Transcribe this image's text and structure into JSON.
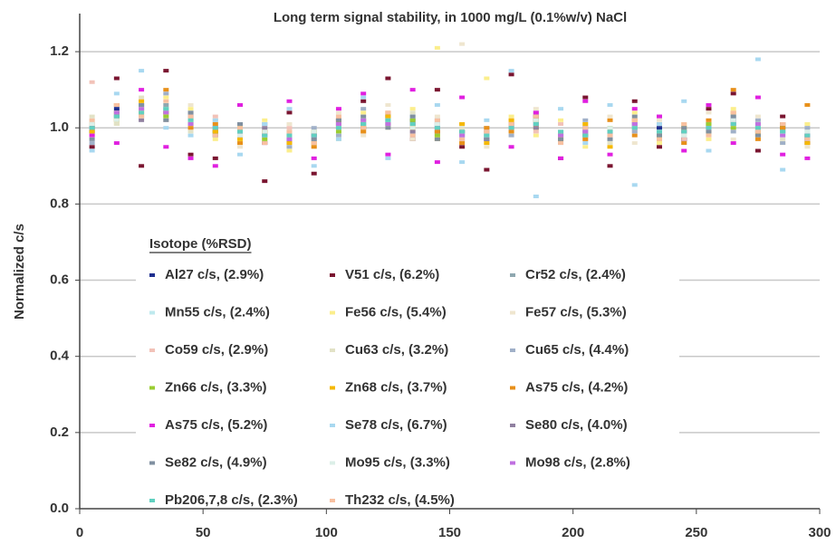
{
  "chart_data": {
    "type": "scatter",
    "title": "Long term signal stability, in 1000 mg/L (0.1%w/v) NaCl",
    "y_label": "Normalized c/s",
    "legend_title": "Isotope (%RSD)",
    "xlim": [
      0,
      300
    ],
    "xticks": [
      0,
      50,
      100,
      150,
      200,
      250,
      300
    ],
    "ylim": [
      0,
      1.3
    ],
    "yticks": [
      {
        "value": 0,
        "label": "0.0"
      },
      {
        "value": 0.2,
        "label": "0.2"
      },
      {
        "value": 0.4,
        "label": "0.4"
      },
      {
        "value": 0.6,
        "label": "0.6"
      },
      {
        "value": 0.8,
        "label": "0.8"
      },
      {
        "value": 1.0,
        "label": "1.0"
      },
      {
        "value": 1.2,
        "label": "1.2"
      }
    ],
    "grid": true,
    "x": [
      5,
      15,
      25,
      35,
      45,
      55,
      65,
      75,
      85,
      95,
      105,
      115,
      125,
      135,
      145,
      155,
      165,
      175,
      185,
      195,
      205,
      215,
      225,
      235,
      245,
      255,
      265,
      275,
      285,
      295
    ],
    "series": [
      {
        "name": "Al27 c/s, (2.9%)",
        "color": "#1f2f8f",
        "values": [
          0.99,
          1.05,
          1.06,
          1.04,
          1.03,
          0.99,
          0.98,
          0.99,
          0.96,
          0.98,
          1.01,
          1.0,
          1.03,
          1.02,
          0.99,
          0.98,
          0.97,
          1.01,
          1.02,
          0.98,
          0.99,
          0.98,
          1.01,
          1.0,
          0.97,
          1.01,
          1.02,
          0.99,
          1.0,
          0.97
        ]
      },
      {
        "name": "V51 c/s, (6.2%)",
        "color": "#7a1530",
        "values": [
          0.95,
          1.13,
          0.9,
          1.15,
          0.93,
          0.92,
          1.06,
          0.86,
          1.04,
          0.88,
          1.02,
          1.07,
          1.13,
          0.97,
          1.1,
          0.95,
          0.89,
          1.14,
          1.03,
          0.92,
          1.08,
          0.9,
          1.07,
          0.95,
          0.97,
          1.05,
          1.09,
          0.94,
          1.03,
          0.96
        ]
      },
      {
        "name": "Cr52 c/s, (2.4%)",
        "color": "#8fa8b0",
        "values": [
          1.01,
          1.04,
          1.05,
          1.06,
          1.02,
          1.0,
          0.99,
          0.98,
          0.98,
          0.97,
          1.0,
          1.02,
          1.01,
          1.01,
          1.0,
          0.99,
          0.98,
          1.0,
          1.01,
          0.99,
          0.99,
          0.99,
          1.0,
          0.98,
          0.99,
          1.0,
          1.02,
          1.0,
          0.99,
          0.98
        ]
      },
      {
        "name": "Mn55 c/s, (2.4%)",
        "color": "#bfeaee",
        "values": [
          1.02,
          1.03,
          1.06,
          1.04,
          1.01,
          1.01,
          0.98,
          0.99,
          0.97,
          0.98,
          1.01,
          1.01,
          1.02,
          1.0,
          1.01,
          0.98,
          0.98,
          1.01,
          1.0,
          0.98,
          0.98,
          1.0,
          1.01,
          0.99,
          0.98,
          1.01,
          1.01,
          1.0,
          0.98,
          0.99
        ]
      },
      {
        "name": "Fe56 c/s, (5.4%)",
        "color": "#fbee8c",
        "values": [
          1.0,
          1.01,
          1.03,
          1.08,
          1.05,
          0.97,
          0.96,
          1.02,
          0.94,
          0.99,
          0.97,
          1.04,
          1.0,
          1.05,
          1.21,
          0.96,
          1.13,
          1.03,
          0.98,
          1.02,
          0.95,
          1.0,
          1.04,
          0.96,
          1.01,
          0.97,
          1.05,
          0.98,
          0.96,
          1.01
        ]
      },
      {
        "name": "Fe57 c/s, (5.3%)",
        "color": "#efe6cf",
        "values": [
          0.98,
          1.06,
          1.04,
          1.03,
          1.06,
          1.02,
          0.95,
          0.97,
          1.01,
          0.96,
          1.04,
          0.98,
          1.06,
          0.97,
          1.03,
          1.22,
          0.95,
          1.02,
          1.05,
          0.97,
          1.0,
          1.03,
          0.96,
          1.02,
          0.98,
          1.04,
          0.97,
          1.03,
          1.01,
          0.95
        ]
      },
      {
        "name": "Co59 c/s, (2.9%)",
        "color": "#f2c2b8",
        "values": [
          1.12,
          1.04,
          1.07,
          1.02,
          1.0,
          1.03,
          0.98,
          0.96,
          1.0,
          0.99,
          1.02,
          0.99,
          1.04,
          0.99,
          0.98,
          1.01,
          0.97,
          1.02,
          0.99,
          1.01,
          0.97,
          1.0,
          0.99,
          1.01,
          0.97,
          1.02,
          1.0,
          0.98,
          1.01,
          0.97
        ]
      },
      {
        "name": "Cu63 c/s, (3.2%)",
        "color": "#e2e2c6",
        "values": [
          1.03,
          1.01,
          1.08,
          1.05,
          0.99,
          1.02,
          1.01,
          0.96,
          0.99,
          0.95,
          1.03,
          1.0,
          1.0,
          1.04,
          0.98,
          1.0,
          0.96,
          0.99,
          1.03,
          0.97,
          1.01,
          0.96,
          1.02,
          0.98,
          1.0,
          0.98,
          1.03,
          1.01,
          0.97,
          1.0
        ]
      },
      {
        "name": "Cu65 c/s, (4.4%)",
        "color": "#a0b0c8",
        "values": [
          0.96,
          1.02,
          1.03,
          1.09,
          1.04,
          0.98,
          1.0,
          1.01,
          0.95,
          1.0,
          0.98,
          1.05,
          1.03,
          0.98,
          1.02,
          0.97,
          1.0,
          0.98,
          1.04,
          0.96,
          1.02,
          0.98,
          0.99,
          1.03,
          0.96,
          1.01,
          0.99,
          1.02,
          0.96,
          1.0
        ]
      },
      {
        "name": "Zn66 c/s, (3.3%)",
        "color": "#9acd32",
        "values": [
          1.0,
          1.04,
          1.05,
          1.03,
          1.01,
          0.99,
          1.0,
          0.97,
          0.97,
          0.99,
          0.99,
          1.02,
          1.01,
          1.02,
          0.98,
          0.99,
          0.99,
          1.0,
          1.02,
          0.98,
          0.98,
          1.0,
          1.0,
          0.98,
          0.99,
          1.01,
          1.0,
          0.99,
          1.0,
          0.98
        ]
      },
      {
        "name": "Zn68 c/s, (3.7%)",
        "color": "#f5b800",
        "values": [
          0.99,
          1.02,
          1.07,
          1.04,
          1.02,
          0.99,
          0.97,
          0.99,
          0.96,
          0.96,
          1.01,
          1.0,
          1.03,
          1.0,
          0.97,
          1.01,
          0.96,
          1.02,
          1.0,
          0.97,
          1.01,
          0.95,
          1.02,
          0.97,
          1.0,
          0.99,
          1.04,
          0.98,
          1.01,
          0.96
        ]
      },
      {
        "name": "As75 c/s, (4.2%)",
        "color": "#e8901a",
        "values": [
          1.01,
          1.06,
          1.04,
          1.1,
          1.0,
          1.01,
          0.96,
          0.99,
          0.98,
          0.95,
          1.02,
          0.99,
          1.04,
          1.01,
          0.99,
          0.96,
          1.0,
          0.99,
          1.03,
          0.97,
          0.97,
          1.02,
          0.98,
          1.01,
          0.96,
          1.02,
          1.1,
          0.97,
          1.0,
          1.06
        ]
      },
      {
        "name": "As75 c/s, (5.2%)",
        "color": "#e020e0",
        "values": [
          0.98,
          0.96,
          1.1,
          0.95,
          0.92,
          0.9,
          1.06,
          0.96,
          1.07,
          0.92,
          1.05,
          1.09,
          0.93,
          1.1,
          0.91,
          1.08,
          0.97,
          0.95,
          1.04,
          0.92,
          1.07,
          0.93,
          1.05,
          1.03,
          0.94,
          1.06,
          0.96,
          1.08,
          0.93,
          0.92
        ]
      },
      {
        "name": "Se78 c/s, (6.7%)",
        "color": "#a8d8f0",
        "values": [
          0.94,
          1.09,
          1.15,
          1.0,
          0.98,
          1.02,
          0.93,
          1.01,
          1.05,
          0.9,
          0.97,
          1.08,
          0.92,
          1.03,
          1.06,
          0.91,
          1.02,
          1.15,
          0.82,
          1.05,
          0.96,
          1.06,
          0.85,
          1.01,
          1.07,
          0.94,
          1.03,
          1.18,
          0.89,
          0.97
        ]
      },
      {
        "name": "Se80 c/s, (4.0%)",
        "color": "#9080a0",
        "values": [
          1.0,
          1.03,
          1.02,
          1.05,
          1.03,
          1.0,
          0.98,
          1.0,
          0.97,
          0.98,
          1.0,
          1.01,
          1.02,
          0.99,
          1.01,
          0.99,
          0.98,
          1.01,
          1.0,
          0.99,
          0.98,
          0.99,
          1.0,
          0.99,
          0.99,
          1.0,
          1.01,
          1.0,
          0.99,
          0.98
        ]
      },
      {
        "name": "Se82 c/s, (4.9%)",
        "color": "#8090a0",
        "values": [
          0.97,
          1.03,
          1.06,
          1.02,
          1.04,
          0.98,
          1.01,
          0.96,
          0.99,
          0.97,
          1.02,
          1.03,
          1.0,
          1.03,
          0.97,
          0.99,
          0.97,
          1.01,
          1.03,
          0.97,
          1.0,
          0.97,
          1.03,
          0.98,
          1.0,
          0.99,
          1.03,
          0.98,
          1.01,
          0.97
        ]
      },
      {
        "name": "Mo95 c/s, (3.3%)",
        "color": "#dcefe8",
        "values": [
          1.01,
          1.02,
          1.05,
          1.05,
          1.02,
          1.0,
          0.98,
          0.99,
          0.98,
          0.99,
          1.0,
          1.02,
          1.02,
          1.0,
          1.01,
          0.98,
          0.98,
          1.0,
          1.02,
          0.99,
          0.99,
          1.0,
          1.0,
          0.99,
          0.98,
          1.0,
          1.02,
          1.0,
          0.99,
          0.99
        ]
      },
      {
        "name": "Mo98 c/s, (2.8%)",
        "color": "#c070e0",
        "values": [
          1.0,
          1.04,
          1.05,
          1.04,
          1.01,
          1.0,
          0.99,
          0.98,
          0.97,
          0.98,
          1.01,
          1.02,
          1.01,
          1.01,
          1.0,
          0.98,
          0.99,
          1.0,
          1.01,
          0.98,
          0.99,
          0.99,
          1.01,
          0.99,
          0.99,
          1.0,
          1.01,
          1.01,
          0.98,
          0.98
        ]
      },
      {
        "name": "Pb206,7,8 c/s, (2.3%)",
        "color": "#60d0c0",
        "values": [
          1.0,
          1.03,
          1.04,
          1.05,
          1.02,
          1.0,
          0.99,
          0.98,
          0.98,
          0.98,
          1.0,
          1.01,
          1.02,
          1.01,
          1.0,
          0.99,
          0.98,
          1.0,
          1.01,
          0.99,
          0.98,
          0.99,
          1.0,
          0.99,
          0.99,
          1.0,
          1.01,
          1.0,
          0.99,
          0.98
        ]
      },
      {
        "name": "Th232 c/s, (4.5%)",
        "color": "#f8c0a0",
        "values": [
          1.02,
          1.06,
          1.03,
          1.07,
          1.03,
          0.98,
          1.0,
          0.96,
          0.99,
          0.96,
          1.03,
          1.0,
          1.04,
          0.98,
          1.02,
          0.97,
          0.99,
          1.01,
          1.03,
          0.96,
          1.0,
          0.98,
          1.02,
          0.97,
          1.01,
          0.98,
          1.04,
          0.99,
          1.01,
          0.97
        ]
      }
    ]
  }
}
